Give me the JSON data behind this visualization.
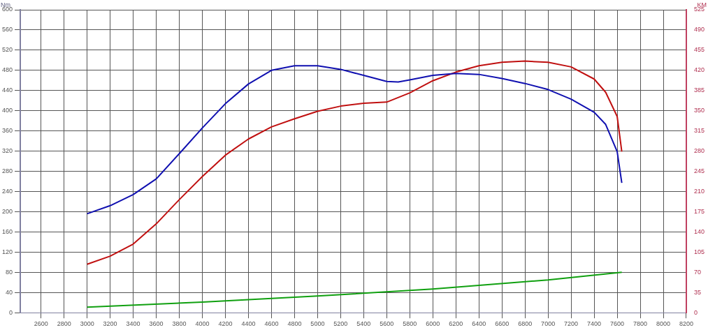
{
  "chart_data": {
    "type": "line",
    "ylabel": "Nm",
    "y2label": "KM",
    "xlim": [
      2420,
      8200
    ],
    "xticks": [
      2600,
      2800,
      3000,
      3200,
      3400,
      3600,
      3800,
      4000,
      4200,
      4400,
      4600,
      4800,
      5000,
      5200,
      5400,
      5600,
      5800,
      6000,
      6200,
      6400,
      6600,
      6800,
      7000,
      7200,
      7400,
      7600,
      7800,
      8000,
      8200
    ],
    "ylim": [
      0,
      600
    ],
    "yticks": [
      0,
      40,
      80,
      120,
      160,
      200,
      240,
      280,
      320,
      360,
      400,
      440,
      480,
      520,
      560,
      600
    ],
    "y2lim": [
      0,
      525
    ],
    "y2ticks": [
      0,
      35,
      70,
      105,
      140,
      175,
      210,
      245,
      280,
      315,
      350,
      385,
      420,
      455,
      490,
      525
    ],
    "grid": true,
    "legend": false,
    "marker": "none",
    "line_style": "solid",
    "series": [
      {
        "color": "#1010b0",
        "axis": "y",
        "x": [
          3000,
          3200,
          3400,
          3600,
          3800,
          4000,
          4200,
          4400,
          4600,
          4800,
          5000,
          5200,
          5400,
          5600,
          5700,
          5800,
          6000,
          6200,
          6400,
          6600,
          6800,
          7000,
          7200,
          7400,
          7500,
          7600,
          7640
        ],
        "values": [
          196,
          212,
          234,
          265,
          315,
          366,
          414,
          453,
          480,
          489,
          489,
          482,
          470,
          458,
          457,
          461,
          470,
          474,
          472,
          464,
          454,
          442,
          423,
          397,
          373,
          319,
          257
        ]
      },
      {
        "color": "#c01010",
        "axis": "y2",
        "x": [
          3000,
          3200,
          3400,
          3600,
          3800,
          4000,
          4200,
          4400,
          4600,
          4800,
          5000,
          5200,
          5400,
          5600,
          5800,
          6000,
          6200,
          6400,
          6600,
          6800,
          7000,
          7200,
          7400,
          7500,
          7600,
          7640
        ],
        "values": [
          84,
          98,
          119,
          154,
          196,
          236,
          273,
          301,
          322,
          336,
          349,
          358,
          363,
          365,
          381,
          402,
          417,
          428,
          434,
          436,
          434,
          426,
          405,
          382,
          340,
          279
        ]
      },
      {
        "color": "#10a010",
        "axis": "y",
        "x": [
          3000,
          4000,
          5000,
          6000,
          7000,
          7640
        ],
        "values": [
          11,
          21,
          33,
          47,
          65,
          80
        ]
      }
    ]
  }
}
